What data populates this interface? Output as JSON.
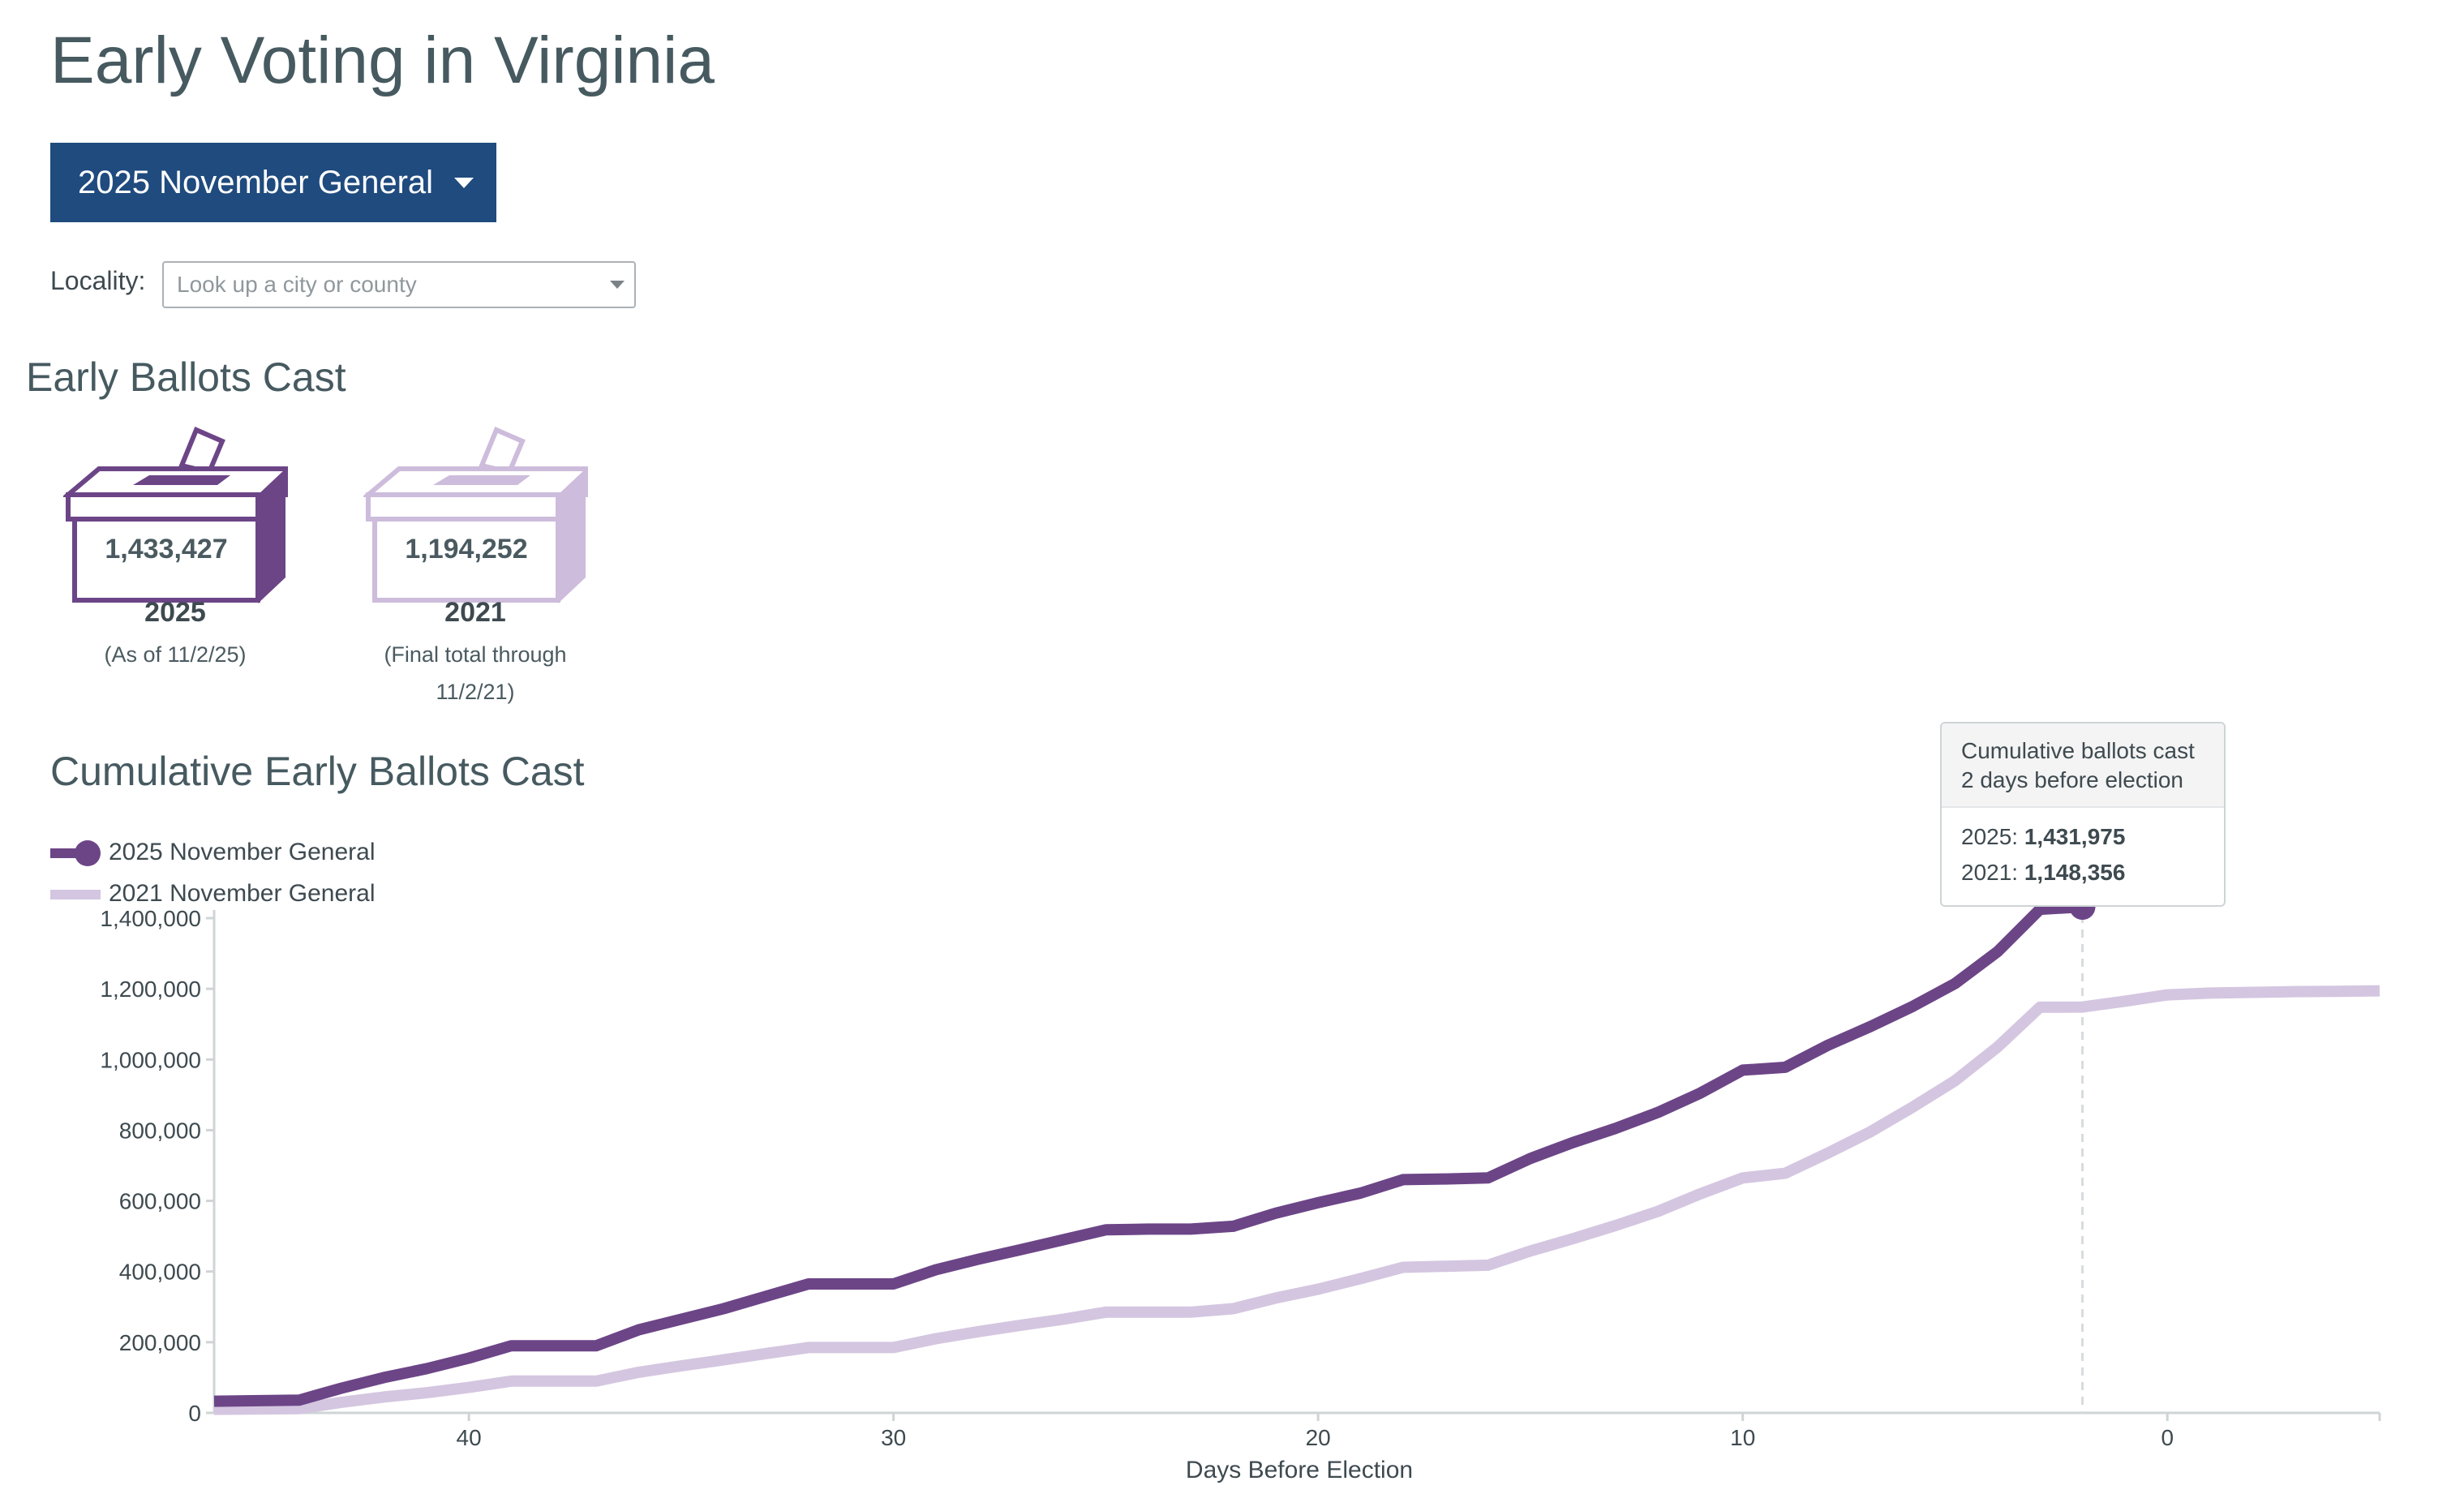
{
  "page": {
    "title": "Early Voting in Virginia"
  },
  "election_select": {
    "label": "2025 November General"
  },
  "locality": {
    "label": "Locality:",
    "placeholder": "Look up a city or county"
  },
  "ballots": {
    "heading": "Early Ballots Cast",
    "boxes": [
      {
        "count": "1,433,427",
        "year": "2025",
        "note_line1": "(As of 11/2/25)",
        "note_line2": "",
        "color": "#6c4587"
      },
      {
        "count": "1,194,252",
        "year": "2021",
        "note_line1": "(Final total through",
        "note_line2": "11/2/21)",
        "color": "#cdbcdb"
      }
    ]
  },
  "chart_heading": "Cumulative Early Ballots Cast",
  "tooltip": {
    "line1": "Cumulative ballots cast",
    "line2": "2 days before election",
    "label_2025": "2025: ",
    "value_2025": "1,431,975",
    "label_2021": "2021: ",
    "value_2021": "1,148,356"
  },
  "colors": {
    "series_2025": "#6c4587",
    "series_2021": "#d4c6e0",
    "title": "#465a60",
    "button": "#1f4b7e"
  },
  "chart_data": {
    "type": "line",
    "title": "Cumulative Early Ballots Cast",
    "xlabel": "Days Before Election",
    "ylabel": "",
    "xlim": [
      46,
      -5
    ],
    "ylim": [
      0,
      1400000
    ],
    "x_ticks": [
      40,
      30,
      20,
      10,
      0
    ],
    "x_tick_labels": [
      "40",
      "30",
      "20",
      "10",
      "0"
    ],
    "y_ticks": [
      0,
      200000,
      400000,
      600000,
      800000,
      1000000,
      1200000,
      1400000
    ],
    "y_tick_labels": [
      "0",
      "200,000",
      "400,000",
      "600,000",
      "800,000",
      "1,000,000",
      "1,200,000",
      "1,400,000"
    ],
    "legend": "top-left",
    "grid": false,
    "highlight_x": 2,
    "series": [
      {
        "name": "2025 November General",
        "x": [
          46,
          44,
          43,
          42,
          41,
          40,
          39,
          38,
          37,
          36,
          35,
          34,
          33,
          32,
          31,
          30,
          29,
          28,
          27,
          26,
          25,
          24,
          23,
          22,
          21,
          20,
          19,
          18,
          17,
          16,
          15,
          14,
          13,
          12,
          11,
          10,
          9,
          8,
          7,
          6,
          5,
          4,
          3,
          2
        ],
        "y": [
          33000,
          36000,
          70000,
          100000,
          125000,
          155000,
          190000,
          190000,
          190000,
          235000,
          265000,
          295000,
          330000,
          365000,
          365000,
          365000,
          405000,
          435000,
          462000,
          490000,
          518000,
          520000,
          520000,
          528000,
          565000,
          595000,
          622000,
          660000,
          662000,
          665000,
          720000,
          765000,
          805000,
          850000,
          905000,
          970000,
          978000,
          1040000,
          1093000,
          1150000,
          1215000,
          1305000,
          1425000,
          1431975
        ]
      },
      {
        "name": "2021 November General",
        "x": [
          46,
          44,
          43,
          42,
          41,
          40,
          39,
          38,
          37,
          36,
          35,
          34,
          33,
          32,
          31,
          30,
          29,
          28,
          27,
          26,
          25,
          24,
          23,
          22,
          21,
          20,
          19,
          18,
          17,
          16,
          15,
          14,
          13,
          12,
          11,
          10,
          9,
          8,
          7,
          6,
          5,
          4,
          3,
          2,
          1,
          0,
          -1,
          -2,
          -3,
          -4,
          -5
        ],
        "y": [
          10000,
          12000,
          30000,
          45000,
          57000,
          72000,
          90000,
          90000,
          90000,
          115000,
          133000,
          150000,
          168000,
          185000,
          185000,
          185000,
          210000,
          230000,
          248000,
          265000,
          285000,
          285000,
          285000,
          295000,
          325000,
          350000,
          380000,
          412000,
          415000,
          418000,
          458000,
          493000,
          530000,
          570000,
          620000,
          665000,
          678000,
          735000,
          795000,
          865000,
          940000,
          1035000,
          1148000,
          1148356,
          1165000,
          1183000,
          1188000,
          1190000,
          1192000,
          1193000,
          1194252
        ]
      }
    ]
  }
}
